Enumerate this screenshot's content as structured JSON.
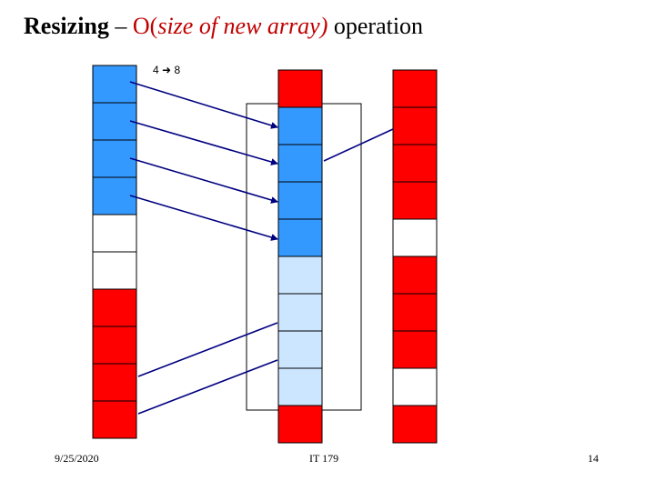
{
  "title": {
    "term": "Resizing",
    "dash": " – ",
    "complexity_prefix": "O(",
    "complexity_arg": "size of new array)",
    "suffix": " operation"
  },
  "size_change": {
    "from": "4",
    "arrow_icon": "right-arrow-icon",
    "to": "8"
  },
  "colors": {
    "used_in_old": "#ff0000",
    "copied": "#3399ff",
    "free": "#cce6ff",
    "empty": "#ffffff",
    "arrow": "#000080"
  },
  "arrays": [
    {
      "name": "left-array",
      "cells": [
        "copied",
        "copied",
        "copied",
        "copied",
        "empty",
        "empty",
        "used",
        "used",
        "used",
        "used"
      ]
    },
    {
      "name": "middle-array",
      "cells": [
        "used",
        "copied",
        "copied",
        "copied",
        "copied",
        "free",
        "free",
        "free",
        "free",
        "used"
      ]
    },
    {
      "name": "right-array",
      "cells": [
        "used",
        "used",
        "used",
        "used",
        "empty",
        "used",
        "used",
        "used",
        "empty",
        "used"
      ]
    }
  ],
  "footer": {
    "date": "9/25/2020",
    "course": "IT 179",
    "page": "14"
  }
}
